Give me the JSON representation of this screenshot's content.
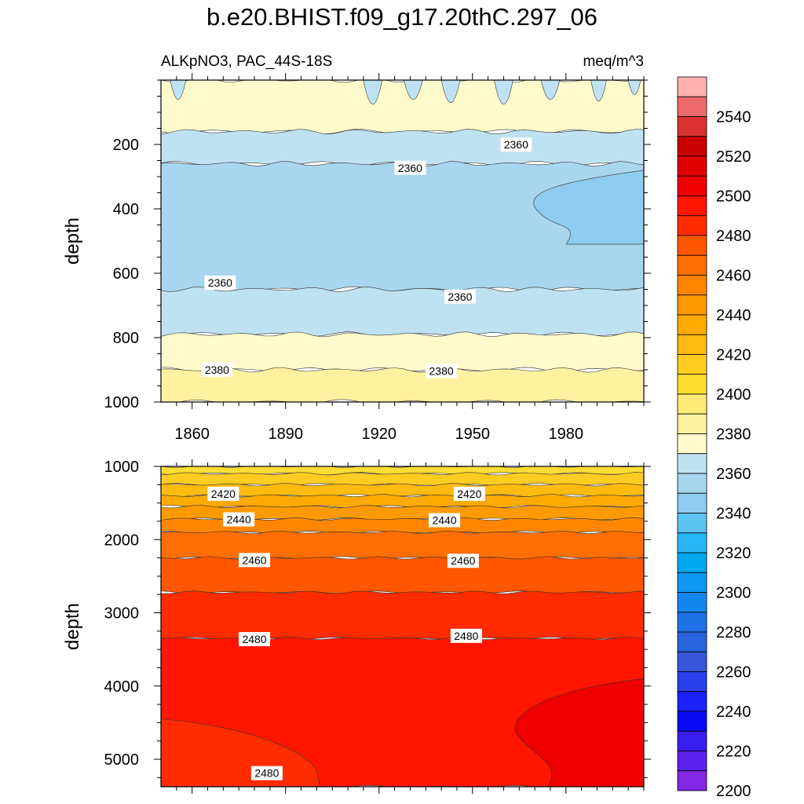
{
  "title": "b.e20.BHIST.f09_g17.20thC.297_06",
  "subtitle_left": "ALKpNO3, PAC_44S-18S",
  "subtitle_right": "meq/m^3",
  "chart_data": [
    {
      "type": "contour",
      "panel": "upper",
      "ylabel": "depth",
      "xlabel": "",
      "xlim": [
        1850,
        2005
      ],
      "ylim": [
        0,
        1000
      ],
      "y_reversed": true,
      "xticks": [
        1860,
        1890,
        1920,
        1950,
        1980
      ],
      "yticks": [
        200,
        400,
        600,
        800,
        1000
      ],
      "regions": [
        {
          "fill_level": 2370,
          "depth_range": [
            0,
            160
          ],
          "note": "surface band, broken by 2360-2370 intrusions"
        },
        {
          "fill_level": 2360,
          "depth_range": [
            160,
            260
          ]
        },
        {
          "fill_level": 2350,
          "depth_range": [
            260,
            650
          ]
        },
        {
          "fill_level": 2340,
          "depth_range": [
            280,
            510
          ],
          "years": [
            1970,
            2005
          ]
        },
        {
          "fill_level": 2360,
          "depth_range": [
            650,
            790
          ]
        },
        {
          "fill_level": 2370,
          "depth_range": [
            790,
            900
          ]
        },
        {
          "fill_level": 2380,
          "depth_range": [
            900,
            1000
          ]
        }
      ],
      "contour_labels": [
        {
          "text": "2360",
          "year": 1930,
          "depth": 275
        },
        {
          "text": "2360",
          "year": 1964,
          "depth": 203
        },
        {
          "text": "2360",
          "year": 1869,
          "depth": 632
        },
        {
          "text": "2360",
          "year": 1946,
          "depth": 675
        },
        {
          "text": "2380",
          "year": 1868,
          "depth": 902
        },
        {
          "text": "2380",
          "year": 1940,
          "depth": 906
        }
      ]
    },
    {
      "type": "contour",
      "panel": "lower",
      "ylabel": "depth",
      "xlabel": "",
      "xlim": [
        1850,
        2005
      ],
      "ylim": [
        1000,
        5375
      ],
      "y_reversed": true,
      "xticks": [
        1860,
        1890,
        1920,
        1950,
        1980
      ],
      "yticks": [
        1000,
        2000,
        3000,
        4000,
        5000
      ],
      "regions": [
        {
          "fill_level": 2400,
          "depth_range": [
            1000,
            1100
          ]
        },
        {
          "fill_level": 2410,
          "depth_range": [
            1100,
            1250
          ]
        },
        {
          "fill_level": 2420,
          "depth_range": [
            1250,
            1400
          ]
        },
        {
          "fill_level": 2430,
          "depth_range": [
            1400,
            1550
          ]
        },
        {
          "fill_level": 2440,
          "depth_range": [
            1550,
            1720
          ]
        },
        {
          "fill_level": 2450,
          "depth_range": [
            1720,
            1900
          ]
        },
        {
          "fill_level": 2460,
          "depth_range": [
            1900,
            2250
          ]
        },
        {
          "fill_level": 2470,
          "depth_range": [
            2250,
            2720
          ]
        },
        {
          "fill_level": 2480,
          "depth_range": [
            2720,
            3350
          ]
        },
        {
          "fill_level": 2490,
          "depth_range": [
            3350,
            5375
          ]
        },
        {
          "fill_level": 2500,
          "depth_range": [
            3900,
            5375
          ],
          "years": [
            1964,
            2005
          ]
        },
        {
          "fill_level": 2480,
          "depth_range": [
            4450,
            5375
          ],
          "years": [
            1850,
            1900
          ]
        }
      ],
      "contour_labels": [
        {
          "text": "2420",
          "year": 1870,
          "depth": 1385
        },
        {
          "text": "2440",
          "year": 1875,
          "depth": 1735
        },
        {
          "text": "2460",
          "year": 1880,
          "depth": 2290
        },
        {
          "text": "2480",
          "year": 1880,
          "depth": 3370
        },
        {
          "text": "2420",
          "year": 1949,
          "depth": 1385
        },
        {
          "text": "2440",
          "year": 1941,
          "depth": 1745
        },
        {
          "text": "2460",
          "year": 1947,
          "depth": 2300
        },
        {
          "text": "2480",
          "year": 1948,
          "depth": 3325
        },
        {
          "text": "2480",
          "year": 1884,
          "depth": 5200
        }
      ]
    }
  ],
  "colorbar": {
    "labels": [
      "2540",
      "2520",
      "2500",
      "2480",
      "2460",
      "2440",
      "2420",
      "2400",
      "2380",
      "2360",
      "2340",
      "2320",
      "2300",
      "2280",
      "2260",
      "2240",
      "2220",
      "2200"
    ],
    "colors_top_to_bottom": [
      "#ffb0b0",
      "#ec6a6a",
      "#d83232",
      "#c80000",
      "#e00000",
      "#ee0000",
      "#ff1500",
      "#ff2c00",
      "#ff5600",
      "#ff6e00",
      "#ff8500",
      "#ff9a00",
      "#ffaa00",
      "#ffbb10",
      "#ffcc22",
      "#ffdd33",
      "#ffea77",
      "#fff1a0",
      "#fffacc",
      "#bfe2f2",
      "#a9d6ef",
      "#8ecbee",
      "#5dc3f0",
      "#28b8f5",
      "#00a8f0",
      "#0d99f2",
      "#1585f0",
      "#1e72e6",
      "#2a64dc",
      "#3756d8",
      "#2a40ec",
      "#1a22f8",
      "#0a0af5",
      "#3a1ef0",
      "#5a22ea",
      "#8326e6"
    ]
  }
}
